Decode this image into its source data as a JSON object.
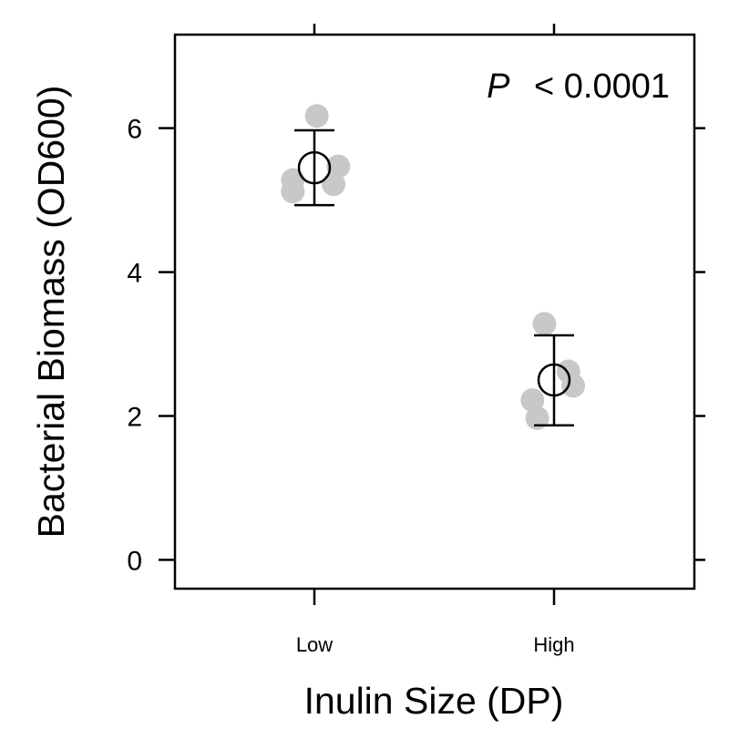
{
  "chart_data": {
    "type": "scatter",
    "title": "",
    "xlabel": "Inulin Size (DP)",
    "ylabel": "Bacterial Biomass (OD600)",
    "categories": [
      "Low",
      "High"
    ],
    "ylim": [
      -0.4,
      7.3
    ],
    "yticks": [
      0,
      2,
      4,
      6
    ],
    "grid": false,
    "legend": "none",
    "annotation": {
      "italic": "P",
      "text": "< 0.0001"
    },
    "colors": {
      "points": "#c8c8c8",
      "summary": "#000000"
    },
    "series": [
      {
        "category": "Low",
        "points": [
          {
            "offset": 0.01,
            "y": 6.17
          },
          {
            "offset": 0.1,
            "y": 5.47
          },
          {
            "offset": -0.09,
            "y": 5.28
          },
          {
            "offset": -0.09,
            "y": 5.12
          },
          {
            "offset": 0.08,
            "y": 5.22
          }
        ],
        "mean": 5.45,
        "error_low": 4.93,
        "error_high": 5.97
      },
      {
        "category": "High",
        "points": [
          {
            "offset": -0.04,
            "y": 3.28
          },
          {
            "offset": 0.06,
            "y": 2.62
          },
          {
            "offset": 0.08,
            "y": 2.42
          },
          {
            "offset": -0.09,
            "y": 2.22
          },
          {
            "offset": -0.07,
            "y": 1.97
          }
        ],
        "mean": 2.5,
        "error_low": 1.87,
        "error_high": 3.12
      }
    ]
  }
}
